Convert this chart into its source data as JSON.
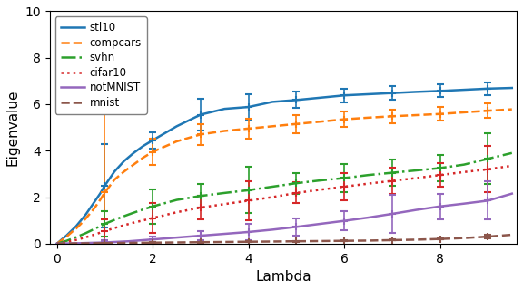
{
  "title": "",
  "xlabel": "Lambda",
  "ylabel": "Eigenvalue",
  "xlim": [
    -0.15,
    9.6
  ],
  "ylim": [
    0,
    10
  ],
  "yticks": [
    0,
    2,
    4,
    6,
    8,
    10
  ],
  "xticks": [
    0,
    2,
    4,
    6,
    8
  ],
  "datasets": {
    "stl10": {
      "x_curve": [
        0,
        0.1,
        0.2,
        0.3,
        0.4,
        0.5,
        0.6,
        0.7,
        0.8,
        0.9,
        1.0,
        1.2,
        1.4,
        1.6,
        1.8,
        2.0,
        2.5,
        3.0,
        3.5,
        4.0,
        4.5,
        5.0,
        5.5,
        6.0,
        6.5,
        7.0,
        7.5,
        8.0,
        8.5,
        9.0,
        9.5
      ],
      "y_curve": [
        0.0,
        0.18,
        0.35,
        0.55,
        0.75,
        1.0,
        1.25,
        1.55,
        1.85,
        2.15,
        2.5,
        3.1,
        3.55,
        3.9,
        4.2,
        4.45,
        5.05,
        5.55,
        5.8,
        5.88,
        6.1,
        6.18,
        6.28,
        6.38,
        6.43,
        6.48,
        6.53,
        6.57,
        6.62,
        6.67,
        6.7
      ],
      "x_err": [
        1,
        2,
        3,
        4,
        5,
        6,
        7,
        8,
        9
      ],
      "y_err": [
        2.5,
        4.45,
        5.55,
        5.88,
        6.18,
        6.38,
        6.48,
        6.57,
        6.67
      ],
      "yerr": [
        1.8,
        0.35,
        0.7,
        0.55,
        0.35,
        0.3,
        0.28,
        0.27,
        0.27
      ],
      "color": "#1f77b4",
      "linestyle": "-"
    },
    "compcars": {
      "x_curve": [
        0,
        0.1,
        0.2,
        0.3,
        0.4,
        0.5,
        0.6,
        0.7,
        0.8,
        0.9,
        1.0,
        1.2,
        1.4,
        1.6,
        1.8,
        2.0,
        2.5,
        3.0,
        3.5,
        4.0,
        4.5,
        5.0,
        5.5,
        6.0,
        6.5,
        7.0,
        7.5,
        8.0,
        8.5,
        9.0,
        9.5
      ],
      "y_curve": [
        0.0,
        0.15,
        0.3,
        0.48,
        0.65,
        0.85,
        1.08,
        1.32,
        1.58,
        1.88,
        2.2,
        2.75,
        3.1,
        3.4,
        3.7,
        3.95,
        4.4,
        4.7,
        4.85,
        4.95,
        5.05,
        5.15,
        5.25,
        5.35,
        5.42,
        5.48,
        5.53,
        5.58,
        5.65,
        5.72,
        5.78
      ],
      "x_err": [
        1,
        2,
        3,
        4,
        5,
        6,
        7,
        8,
        9
      ],
      "y_err": [
        2.2,
        3.95,
        4.7,
        4.95,
        5.15,
        5.35,
        5.48,
        5.58,
        5.72
      ],
      "yerr": [
        3.5,
        0.55,
        0.45,
        0.42,
        0.38,
        0.32,
        0.3,
        0.3,
        0.3
      ],
      "color": "#ff7f0e",
      "linestyle": "--"
    },
    "svhn": {
      "x_curve": [
        0,
        0.2,
        0.4,
        0.6,
        0.8,
        1.0,
        1.2,
        1.4,
        1.6,
        1.8,
        2.0,
        2.5,
        3.0,
        3.5,
        4.0,
        4.5,
        5.0,
        5.5,
        6.0,
        6.5,
        7.0,
        7.5,
        8.0,
        8.5,
        9.0,
        9.5
      ],
      "y_curve": [
        0.0,
        0.12,
        0.28,
        0.45,
        0.65,
        0.85,
        1.02,
        1.18,
        1.33,
        1.47,
        1.6,
        1.88,
        2.05,
        2.18,
        2.3,
        2.45,
        2.6,
        2.72,
        2.82,
        2.95,
        3.05,
        3.15,
        3.25,
        3.4,
        3.65,
        3.9
      ],
      "x_err": [
        1,
        2,
        3,
        4,
        5,
        6,
        7,
        8,
        9
      ],
      "y_err": [
        0.85,
        1.6,
        2.05,
        2.3,
        2.6,
        2.82,
        3.05,
        3.25,
        3.65
      ],
      "yerr": [
        0.55,
        0.75,
        0.5,
        1.0,
        0.45,
        0.6,
        0.55,
        0.55,
        1.1
      ],
      "color": "#2ca02c",
      "linestyle": "-."
    },
    "cifar10": {
      "x_curve": [
        0,
        0.2,
        0.4,
        0.6,
        0.8,
        1.0,
        1.2,
        1.4,
        1.6,
        1.8,
        2.0,
        2.5,
        3.0,
        3.5,
        4.0,
        4.5,
        5.0,
        5.5,
        6.0,
        6.5,
        7.0,
        7.5,
        8.0,
        8.5,
        9.0,
        9.5
      ],
      "y_curve": [
        0.0,
        0.07,
        0.16,
        0.27,
        0.4,
        0.54,
        0.67,
        0.79,
        0.9,
        1.0,
        1.1,
        1.35,
        1.55,
        1.7,
        1.85,
        2.0,
        2.18,
        2.32,
        2.45,
        2.58,
        2.7,
        2.82,
        2.95,
        3.08,
        3.2,
        3.35
      ],
      "x_err": [
        1,
        2,
        3,
        4,
        5,
        6,
        7,
        8,
        9
      ],
      "y_err": [
        0.54,
        1.1,
        1.55,
        1.85,
        2.18,
        2.45,
        2.7,
        2.95,
        3.2
      ],
      "yerr": [
        0.5,
        0.65,
        0.5,
        0.85,
        0.45,
        0.6,
        0.55,
        0.5,
        1.0
      ],
      "color": "#d62728",
      "linestyle": ":"
    },
    "notMNIST": {
      "x_curve": [
        0,
        0.5,
        1.0,
        1.5,
        2.0,
        2.5,
        3.0,
        3.5,
        4.0,
        4.5,
        5.0,
        5.5,
        6.0,
        6.5,
        7.0,
        7.5,
        8.0,
        8.5,
        9.0,
        9.5
      ],
      "y_curve": [
        0.0,
        0.02,
        0.05,
        0.1,
        0.18,
        0.26,
        0.34,
        0.42,
        0.5,
        0.6,
        0.72,
        0.85,
        0.98,
        1.12,
        1.28,
        1.45,
        1.6,
        1.72,
        1.85,
        2.15
      ],
      "x_err": [
        1,
        2,
        3,
        4,
        5,
        6,
        7,
        8,
        9
      ],
      "y_err": [
        0.05,
        0.18,
        0.34,
        0.5,
        0.72,
        0.98,
        1.28,
        1.6,
        1.85
      ],
      "yerr": [
        0.08,
        0.12,
        0.18,
        0.35,
        0.38,
        0.4,
        0.82,
        0.55,
        0.82
      ],
      "color": "#9467bd",
      "linestyle": "-"
    },
    "mnist": {
      "x_curve": [
        0,
        0.5,
        1.0,
        1.5,
        2.0,
        2.5,
        3.0,
        3.5,
        4.0,
        4.5,
        5.0,
        5.5,
        6.0,
        6.5,
        7.0,
        7.5,
        8.0,
        8.5,
        9.0,
        9.5
      ],
      "y_curve": [
        0.0,
        0.01,
        0.02,
        0.03,
        0.04,
        0.05,
        0.06,
        0.07,
        0.08,
        0.09,
        0.1,
        0.11,
        0.12,
        0.13,
        0.15,
        0.17,
        0.2,
        0.24,
        0.3,
        0.38
      ],
      "x_err": [
        1,
        2,
        3,
        4,
        5,
        6,
        7,
        8,
        9
      ],
      "y_err": [
        0.02,
        0.04,
        0.06,
        0.08,
        0.1,
        0.12,
        0.15,
        0.2,
        0.3
      ],
      "yerr": [
        0.02,
        0.02,
        0.02,
        0.02,
        0.02,
        0.02,
        0.02,
        0.03,
        0.08
      ],
      "color": "#8c564b",
      "linestyle": "--"
    }
  },
  "legend_order": [
    "stl10",
    "compcars",
    "svhn",
    "cifar10",
    "notMNIST",
    "mnist"
  ]
}
